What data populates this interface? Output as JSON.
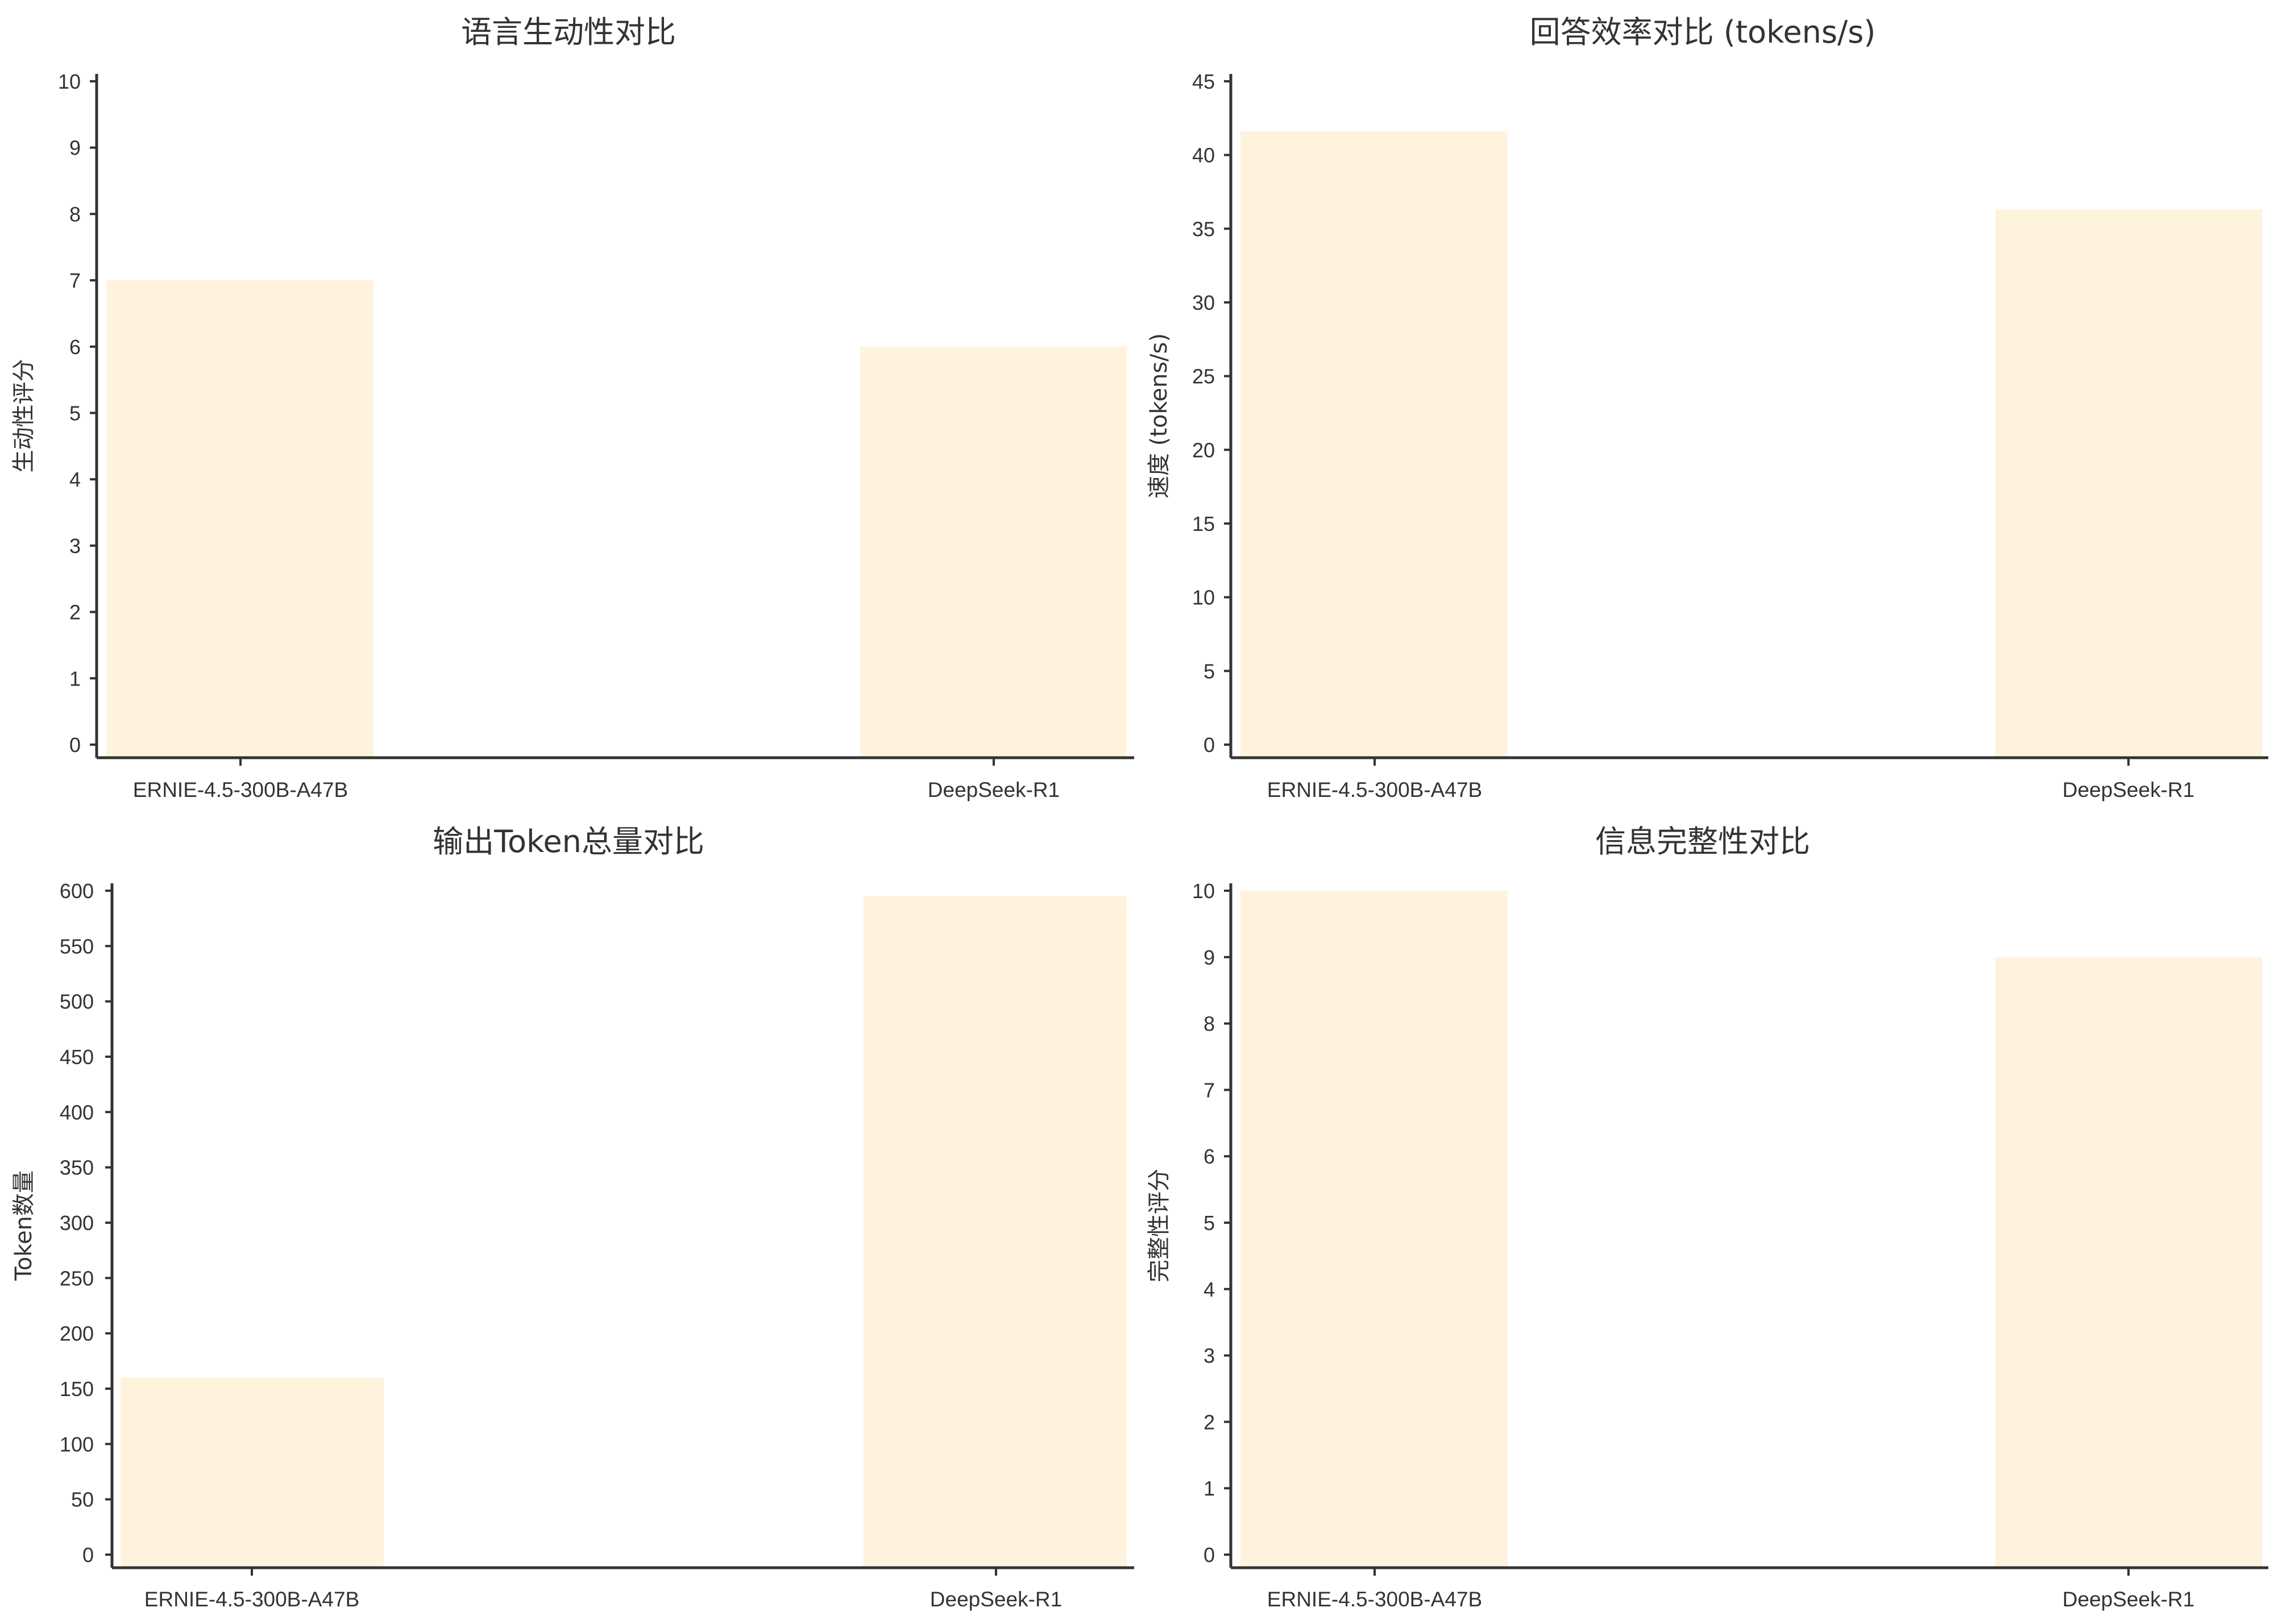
{
  "chart_data": [
    {
      "type": "bar",
      "title": "语言生动性对比",
      "xlabel": "",
      "ylabel": "生动性评分",
      "categories": [
        "ERNIE-4.5-300B-A47B",
        "DeepSeek-R1"
      ],
      "values": [
        7,
        6
      ],
      "ylim": [
        0,
        10
      ],
      "yticks": [
        0,
        1,
        2,
        3,
        4,
        5,
        6,
        7,
        8,
        9,
        10
      ],
      "grid": false,
      "bar_color": "#fff3de"
    },
    {
      "type": "bar",
      "title": "回答效率对比 (tokens/s)",
      "xlabel": "",
      "ylabel": "速度 (tokens/s)",
      "categories": [
        "ERNIE-4.5-300B-A47B",
        "DeepSeek-R1"
      ],
      "values": [
        41.6,
        36.3
      ],
      "ylim": [
        0,
        45
      ],
      "yticks": [
        0,
        5,
        10,
        15,
        20,
        25,
        30,
        35,
        40,
        45
      ],
      "grid": false,
      "bar_color": "#fff3de"
    },
    {
      "type": "bar",
      "title": "输出Token总量对比",
      "xlabel": "",
      "ylabel": "Token数量",
      "categories": [
        "ERNIE-4.5-300B-A47B",
        "DeepSeek-R1"
      ],
      "values": [
        160,
        595
      ],
      "ylim": [
        0,
        600
      ],
      "yticks": [
        0,
        50,
        100,
        150,
        200,
        250,
        300,
        350,
        400,
        450,
        500,
        550,
        600
      ],
      "grid": false,
      "bar_color": "#fff3de"
    },
    {
      "type": "bar",
      "title": "信息完整性对比",
      "xlabel": "",
      "ylabel": "完整性评分",
      "categories": [
        "ERNIE-4.5-300B-A47B",
        "DeepSeek-R1"
      ],
      "values": [
        10,
        9
      ],
      "ylim": [
        0,
        10
      ],
      "yticks": [
        0,
        1,
        2,
        3,
        4,
        5,
        6,
        7,
        8,
        9,
        10
      ],
      "grid": false,
      "bar_color": "#fff3de"
    }
  ]
}
